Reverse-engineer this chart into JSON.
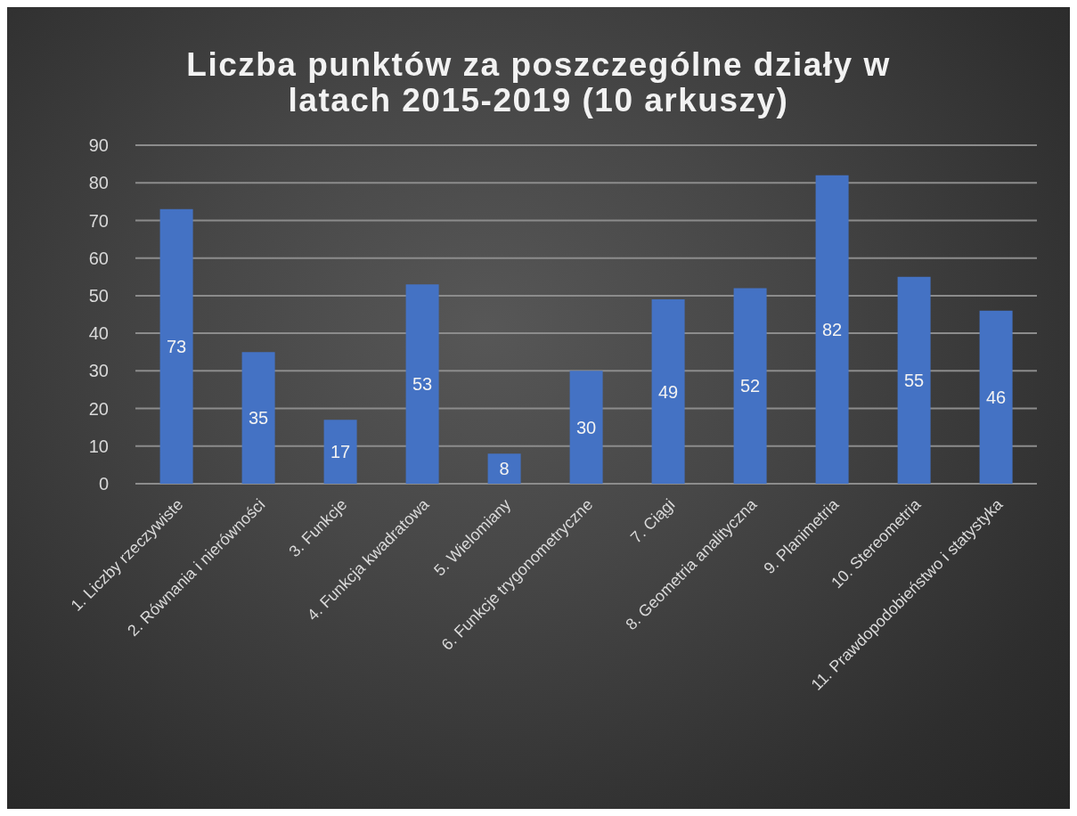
{
  "chart_data": {
    "type": "bar",
    "title": "Liczba punktów za poszczególne działy w latach 2015-2019 (10 arkuszy)",
    "categories": [
      "1. Liczby rzeczywiste",
      "2. Równania i nierówności",
      "3. Funkcje",
      "4. Funkcja kwadratowa",
      "5. Wielomiany",
      "6. Funkcje trygonometryczne",
      "7. Ciągi",
      "8. Geometria analityczna",
      "9. Planimetria",
      "10. Stereometria",
      "11. Prawdopodobieństwo i statystyka"
    ],
    "values": [
      73,
      35,
      17,
      53,
      8,
      30,
      49,
      52,
      82,
      55,
      46
    ],
    "color": "#4472c4",
    "ylim": [
      0,
      90
    ],
    "yticks": [
      0,
      10,
      20,
      30,
      40,
      50,
      60,
      70,
      80,
      90
    ],
    "grid": "y",
    "data_labels": true
  }
}
